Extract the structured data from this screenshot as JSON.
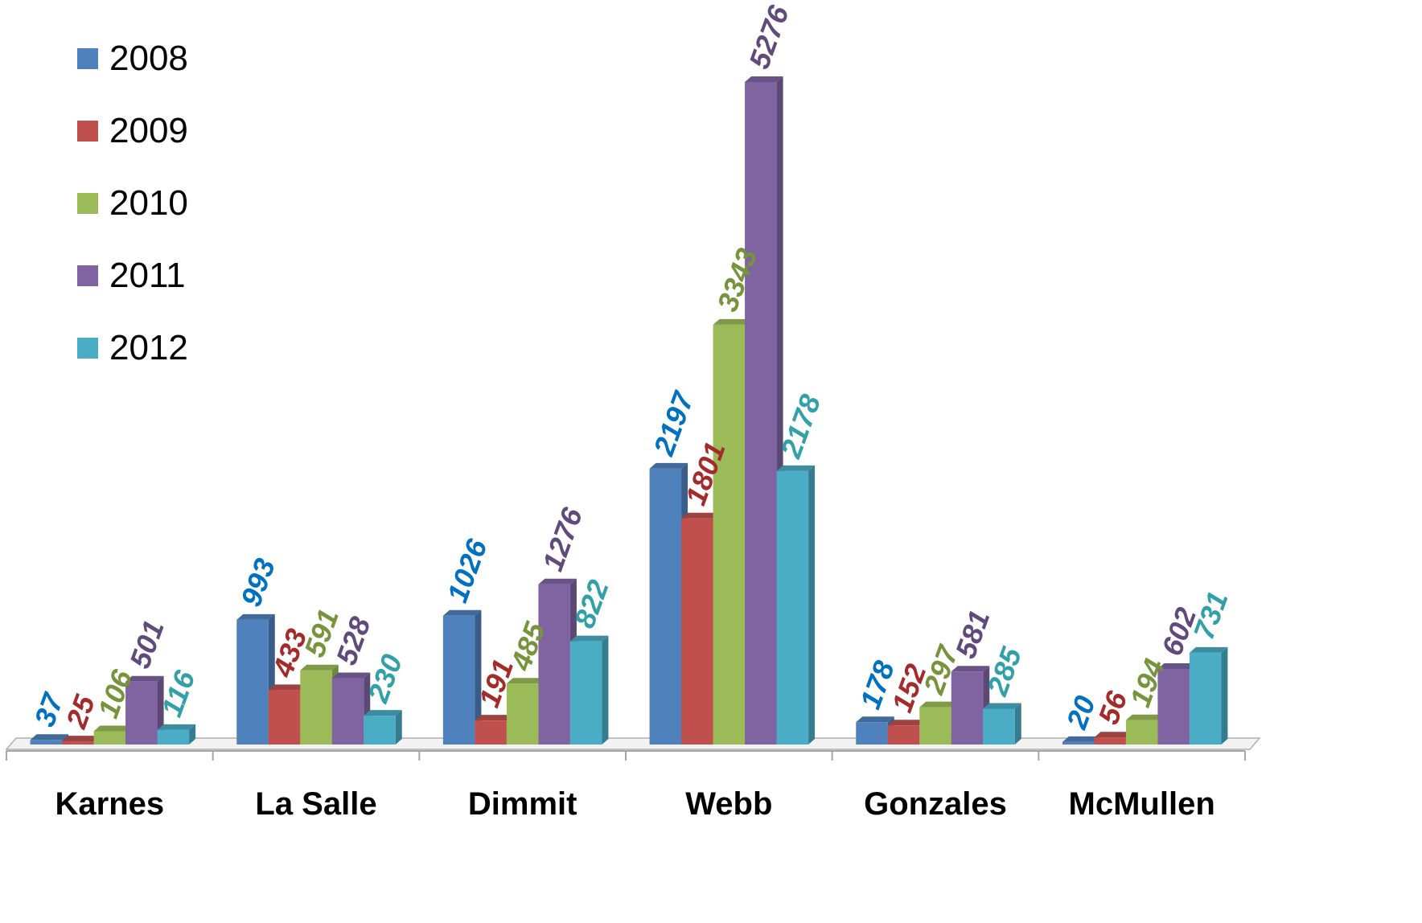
{
  "chart_data": {
    "type": "bar",
    "categories": [
      "Karnes",
      "La Salle",
      "Dimmit",
      "Webb",
      "Gonzales",
      "McMullen"
    ],
    "series": [
      {
        "name": "2008",
        "color": "#4F81BD",
        "label_color": "#0070C0",
        "values": [
          37,
          993,
          1026,
          2197,
          178,
          20
        ]
      },
      {
        "name": "2009",
        "color": "#C0504D",
        "label_color": "#A52A2A",
        "values": [
          25,
          433,
          191,
          1801,
          152,
          56
        ]
      },
      {
        "name": "2010",
        "color": "#9BBB59",
        "label_color": "#77933C",
        "values": [
          106,
          591,
          485,
          3343,
          297,
          194
        ]
      },
      {
        "name": "2011",
        "color": "#8064A2",
        "label_color": "#604A7B",
        "values": [
          501,
          528,
          1276,
          5276,
          581,
          602
        ]
      },
      {
        "name": "2012",
        "color": "#4BACC6",
        "label_color": "#31A0A8",
        "values": [
          116,
          230,
          822,
          2178,
          285,
          731
        ]
      }
    ],
    "title": "",
    "xlabel": "",
    "ylabel": "",
    "ylim": [
      0,
      5276
    ],
    "grid": false,
    "legend_position": "top-left",
    "data_labels": true,
    "style": "3d-clustered-column"
  }
}
